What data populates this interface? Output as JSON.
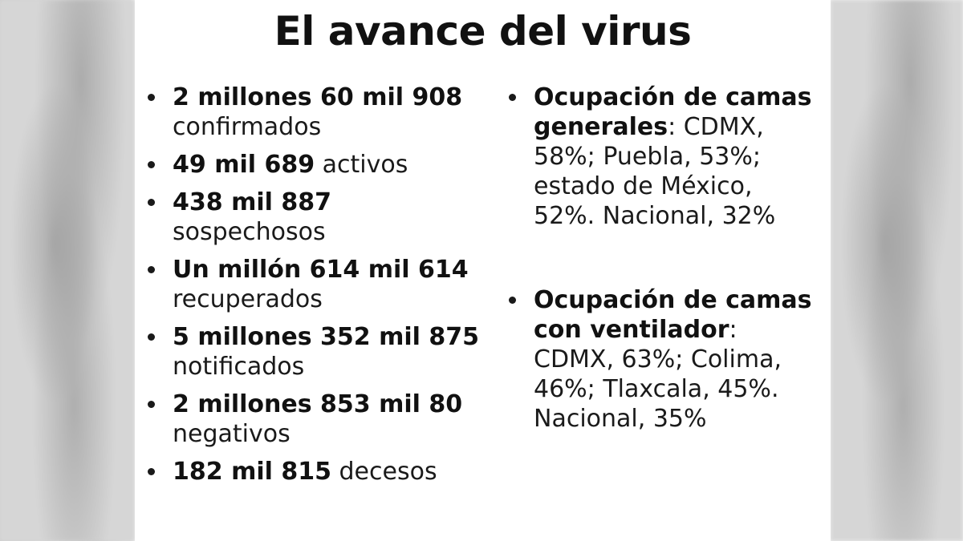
{
  "title": "El avance del virus",
  "left_items": [
    {
      "bold": "2 millones 60 mil 908",
      "text": " confirmados"
    },
    {
      "bold": "49 mil 689",
      "text": " activos"
    },
    {
      "bold": "438 mil 887",
      "text": " sospechosos"
    },
    {
      "bold": "Un millón 614 mil 614",
      "text": " recuperados"
    },
    {
      "bold": "5 millones 352 mil 875",
      "text": " notificados"
    },
    {
      "bold": "2 millones 853 mil 80",
      "text": " negativos"
    },
    {
      "bold": "182 mil 815",
      "text": " decesos"
    }
  ],
  "right_items": [
    {
      "bold": "Ocupación de camas generales",
      "text": ": CDMX, 58%; Puebla, 53%; estado de México, 52%. Nacional, 32%"
    },
    {
      "bold": "Ocupación de camas con ventilador",
      "text": ": CDMX, 63%; Colima, 46%; Tlaxcala, 45%. Nacional, 35%"
    }
  ]
}
